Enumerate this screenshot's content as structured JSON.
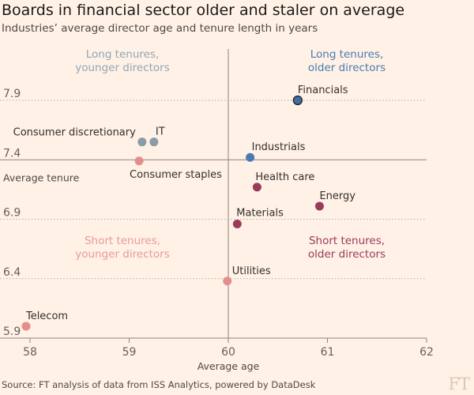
{
  "title": "Boards in financial sector older and staler on average",
  "subtitle": "Industries’ average director age and tenure length in years",
  "source": "Source: FT analysis of data from ISS Analytics, powered by DataDesk",
  "logo": "FT",
  "chart_data": {
    "type": "scatter",
    "xlabel": "Average age",
    "ylabel": "Average tenure",
    "xlim": [
      58,
      62
    ],
    "ylim": [
      5.9,
      7.9
    ],
    "xticks": [
      "58",
      "59",
      "60",
      "61",
      "62"
    ],
    "yticks": [
      "7.9",
      "7.4",
      "6.9",
      "6.4",
      "5.9"
    ],
    "reference_lines": {
      "x": 60,
      "y": 7.4
    },
    "quadrants": [
      {
        "line1": "Long tenures,",
        "line2": "younger directors",
        "color": "#8fa6b8"
      },
      {
        "line1": "Long tenures,",
        "line2": "older directors",
        "color": "#4a7bb0"
      },
      {
        "line1": "Short tenures,",
        "line2": "younger directors",
        "color": "#e89a98"
      },
      {
        "line1": "Short tenures,",
        "line2": "older directors",
        "color": "#9b3a5a"
      }
    ],
    "points": [
      {
        "label": "Financials",
        "x": 60.7,
        "y": 7.9,
        "color": "#3f6ea6",
        "outline": true
      },
      {
        "label": "Consumer discretionary",
        "x": 59.13,
        "y": 7.55,
        "color": "#8c9ba6"
      },
      {
        "label": "IT",
        "x": 59.25,
        "y": 7.55,
        "color": "#8c9ba6"
      },
      {
        "label": "Industrials",
        "x": 60.22,
        "y": 7.42,
        "color": "#4a7bb0"
      },
      {
        "label": "Consumer staples",
        "x": 59.1,
        "y": 7.39,
        "color": "#e38e8c"
      },
      {
        "label": "Health care",
        "x": 60.29,
        "y": 7.17,
        "color": "#9b3a5a"
      },
      {
        "label": "Energy",
        "x": 60.92,
        "y": 7.01,
        "color": "#9b3a5a"
      },
      {
        "label": "Materials",
        "x": 60.09,
        "y": 6.86,
        "color": "#9b3a5a"
      },
      {
        "label": "Utilities",
        "x": 59.99,
        "y": 6.38,
        "color": "#e38e8c"
      },
      {
        "label": "Telecom",
        "x": 57.96,
        "y": 6.0,
        "color": "#e38e8c"
      }
    ]
  }
}
